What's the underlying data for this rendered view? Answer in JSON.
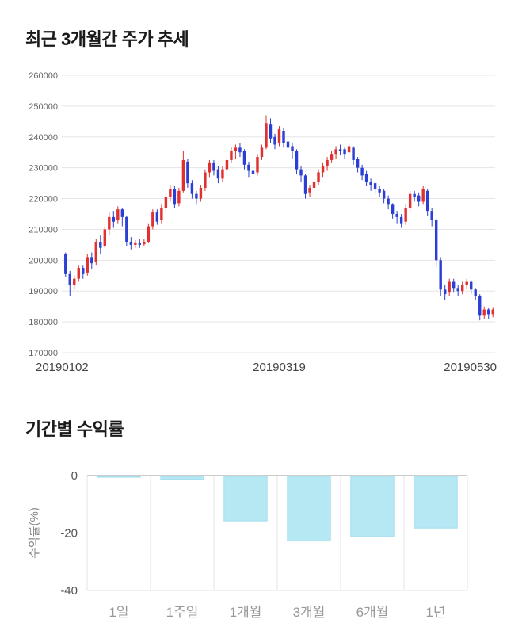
{
  "page": {
    "price_section_title": "최근 3개월간 주가 추세",
    "returns_section_title": "기간별 수익률"
  },
  "chart_data": [
    {
      "type": "candlestick",
      "title": "최근 3개월간 주가 추세",
      "x_labels": [
        "20190102",
        "20190319",
        "20190530"
      ],
      "y_ticks": [
        170000,
        180000,
        190000,
        200000,
        210000,
        220000,
        230000,
        240000,
        250000,
        260000
      ],
      "ylim": [
        170000,
        260000
      ],
      "up_color": "#e03131",
      "down_color": "#2b3fd4",
      "grid_color": "#e5e5e5",
      "candles": [
        [
          202000,
          202500,
          194500,
          195500
        ],
        [
          195500,
          196500,
          188500,
          192000
        ],
        [
          192000,
          195000,
          190500,
          194000
        ],
        [
          194000,
          198500,
          193000,
          197500
        ],
        [
          197500,
          198500,
          194000,
          195500
        ],
        [
          196000,
          202000,
          195000,
          201000
        ],
        [
          201000,
          202500,
          197000,
          199000
        ],
        [
          199500,
          207000,
          198500,
          206000
        ],
        [
          206000,
          208000,
          202000,
          204000
        ],
        [
          204500,
          211000,
          204000,
          210000
        ],
        [
          210000,
          215500,
          208000,
          214000
        ],
        [
          214000,
          216000,
          210500,
          212500
        ],
        [
          213000,
          217500,
          212000,
          216500
        ],
        [
          216500,
          217000,
          211000,
          214000
        ],
        [
          214000,
          214500,
          204500,
          206000
        ],
        [
          206000,
          207500,
          203500,
          205000
        ],
        [
          205000,
          206500,
          204000,
          205800
        ],
        [
          205500,
          206800,
          204000,
          205000
        ],
        [
          205200,
          207000,
          204500,
          206000
        ],
        [
          206000,
          212000,
          205500,
          211000
        ],
        [
          211000,
          216500,
          210000,
          215500
        ],
        [
          215500,
          216500,
          211500,
          212500
        ],
        [
          213000,
          218000,
          212000,
          217000
        ],
        [
          217000,
          221500,
          216000,
          220500
        ],
        [
          220500,
          224500,
          219000,
          223000
        ],
        [
          223000,
          224000,
          217000,
          218000
        ],
        [
          218500,
          223500,
          217500,
          222500
        ],
        [
          222500,
          235500,
          222000,
          232500
        ],
        [
          232000,
          233000,
          223500,
          225000
        ],
        [
          225000,
          226000,
          220000,
          221500
        ],
        [
          221500,
          222500,
          218000,
          220000
        ],
        [
          220000,
          224500,
          219000,
          223500
        ],
        [
          223500,
          229500,
          222500,
          228500
        ],
        [
          228500,
          232500,
          227000,
          231500
        ],
        [
          231500,
          232500,
          227500,
          229000
        ],
        [
          229500,
          230500,
          225000,
          226500
        ],
        [
          226500,
          230500,
          225500,
          229500
        ],
        [
          229500,
          233500,
          228500,
          232500
        ],
        [
          232500,
          236500,
          231500,
          235500
        ],
        [
          235500,
          237500,
          233000,
          236500
        ],
        [
          236500,
          238000,
          233500,
          235000
        ],
        [
          235500,
          236000,
          229500,
          231000
        ],
        [
          231000,
          232000,
          227000,
          229000
        ],
        [
          229000,
          230000,
          226500,
          228000
        ],
        [
          228500,
          234500,
          227500,
          233500
        ],
        [
          233500,
          237500,
          232500,
          236500
        ],
        [
          236500,
          247000,
          236000,
          244500
        ],
        [
          244000,
          246000,
          238000,
          239500
        ],
        [
          240000,
          241000,
          236000,
          237500
        ],
        [
          238000,
          243500,
          237000,
          242500
        ],
        [
          242000,
          243000,
          236500,
          238000
        ],
        [
          238500,
          239500,
          234500,
          236500
        ],
        [
          237000,
          238000,
          233000,
          235500
        ],
        [
          235500,
          236000,
          228000,
          229500
        ],
        [
          229500,
          230500,
          225500,
          227500
        ],
        [
          227500,
          228000,
          220000,
          221500
        ],
        [
          222000,
          224500,
          220500,
          223500
        ],
        [
          223500,
          226500,
          222000,
          225500
        ],
        [
          225500,
          229500,
          224500,
          228500
        ],
        [
          228500,
          231500,
          227000,
          230500
        ],
        [
          230500,
          233500,
          229000,
          232500
        ],
        [
          232500,
          235500,
          231500,
          234500
        ],
        [
          234500,
          237000,
          233000,
          236000
        ],
        [
          236000,
          237500,
          234000,
          235500
        ],
        [
          236000,
          236500,
          233000,
          234500
        ],
        [
          235000,
          238000,
          234000,
          237000
        ],
        [
          236500,
          237000,
          231000,
          232500
        ],
        [
          233000,
          233500,
          228500,
          230000
        ],
        [
          230000,
          231000,
          226000,
          227500
        ],
        [
          228000,
          229000,
          224000,
          225500
        ],
        [
          225500,
          226500,
          222500,
          224500
        ],
        [
          225000,
          225500,
          221500,
          223000
        ],
        [
          223000,
          224000,
          220500,
          222000
        ],
        [
          222500,
          223000,
          218500,
          220000
        ],
        [
          220000,
          221000,
          216500,
          218000
        ],
        [
          218000,
          218500,
          213500,
          215000
        ],
        [
          215000,
          216000,
          212000,
          214000
        ],
        [
          214000,
          215000,
          210500,
          212000
        ],
        [
          212500,
          218000,
          211500,
          217000
        ],
        [
          217000,
          222500,
          216000,
          221500
        ],
        [
          221500,
          222500,
          219000,
          220500
        ],
        [
          221000,
          222000,
          217500,
          219000
        ],
        [
          219000,
          224000,
          218000,
          223000
        ],
        [
          222500,
          223000,
          214500,
          216000
        ],
        [
          216000,
          217000,
          211000,
          213000
        ],
        [
          213000,
          213500,
          198000,
          200000
        ],
        [
          200000,
          201000,
          188500,
          190500
        ],
        [
          190500,
          192000,
          187000,
          189000
        ],
        [
          189500,
          194000,
          188500,
          193000
        ],
        [
          193000,
          194000,
          189500,
          191000
        ],
        [
          191000,
          192000,
          188500,
          190000
        ],
        [
          190000,
          193000,
          189000,
          192000
        ],
        [
          192000,
          194000,
          190500,
          193000
        ],
        [
          193000,
          193500,
          189000,
          190500
        ],
        [
          190500,
          191000,
          187000,
          188500
        ],
        [
          188500,
          189000,
          180500,
          182000
        ],
        [
          182000,
          185000,
          181000,
          184000
        ],
        [
          184000,
          184500,
          181000,
          182500
        ],
        [
          182500,
          184800,
          181500,
          184000
        ]
      ]
    },
    {
      "type": "bar",
      "title": "기간별 수익률",
      "ylabel": "수익률(%)",
      "categories": [
        "1일",
        "1주일",
        "1개월",
        "3개월",
        "6개월",
        "1년"
      ],
      "values": [
        -0.3,
        -1.0,
        -15.5,
        -22.5,
        -21.0,
        -18.0
      ],
      "y_ticks": [
        0,
        -20,
        -40
      ],
      "ylim": [
        -40,
        0
      ],
      "bar_color": "#b5e8f3",
      "bar_border_color": "#a3dfee",
      "axis_color": "#999999",
      "grid_color": "#e3e3e3"
    }
  ]
}
